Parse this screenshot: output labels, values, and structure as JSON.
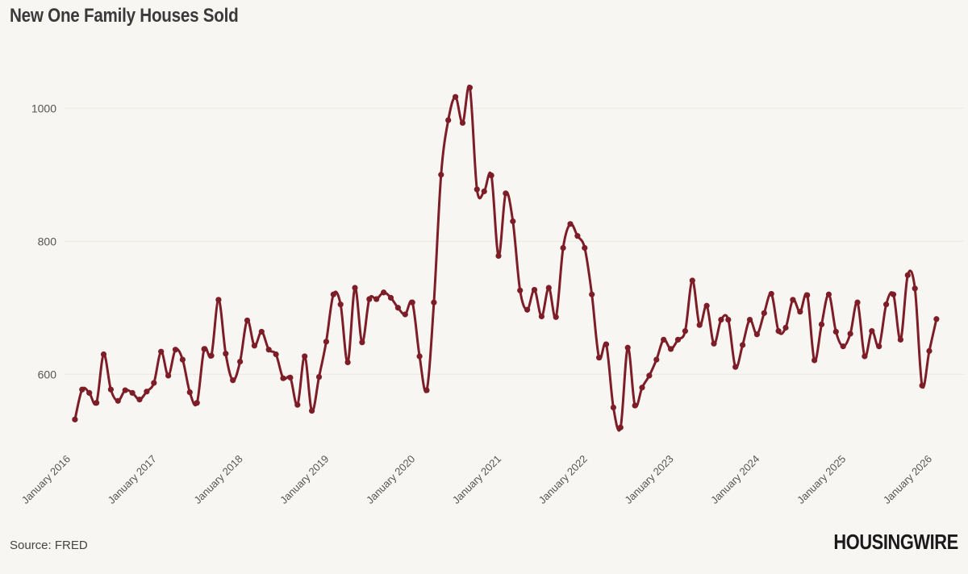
{
  "title": "New One Family Houses Sold",
  "source": "Source: FRED",
  "logo": "HOUSINGWIRE",
  "colors": {
    "line": "#7d1d27",
    "background": "#f8f6f2",
    "grid": "#ebe6e2"
  },
  "chart_data": {
    "type": "line",
    "title": "New One Family Houses Sold",
    "xlabel": "",
    "ylabel": "",
    "ylim": [
      490,
      1090
    ],
    "y_ticks": [
      600,
      800,
      1000
    ],
    "grid": "horizontal",
    "markers": true,
    "x_tick_labels": [
      "January 2016",
      "January 2017",
      "January 2018",
      "January 2019",
      "January 2020",
      "January 2021",
      "January 2022",
      "January 2023",
      "January 2024",
      "January 2025",
      "January 2026"
    ],
    "x_start": "2016-02",
    "x_end": "2026-03",
    "series": [
      {
        "values": [
          532,
          577,
          572,
          557,
          630,
          577,
          560,
          576,
          572,
          562,
          574,
          587,
          634,
          598,
          637,
          622,
          573,
          557,
          638,
          628,
          712,
          631,
          591,
          619,
          681,
          643,
          664,
          637,
          630,
          594,
          595,
          554,
          627,
          545,
          596,
          649,
          720,
          705,
          618,
          730,
          648,
          713,
          713,
          723,
          715,
          700,
          690,
          708,
          627,
          576,
          708,
          900,
          982,
          1017,
          978,
          1031,
          878,
          875,
          899,
          778,
          872,
          830,
          726,
          697,
          727,
          687,
          730,
          686,
          790,
          826,
          808,
          790,
          720,
          625,
          645,
          550,
          520,
          640,
          553,
          580,
          598,
          622,
          652,
          638,
          652,
          665,
          741,
          674,
          703,
          646,
          682,
          682,
          611,
          644,
          682,
          660,
          692,
          721,
          665,
          670,
          712,
          694,
          719,
          621,
          675,
          720,
          664,
          642,
          661,
          708,
          627,
          665,
          642,
          705,
          720,
          652,
          749,
          729,
          583,
          635,
          683
        ]
      }
    ]
  }
}
